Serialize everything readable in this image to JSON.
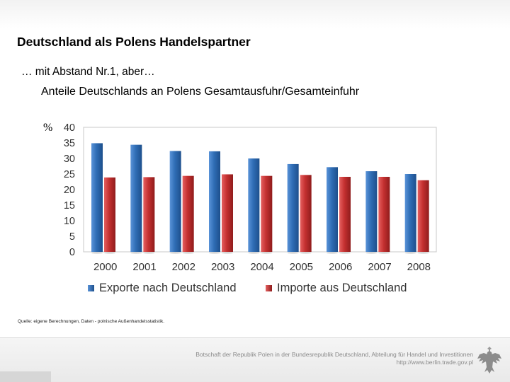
{
  "slide": {
    "title": "Deutschland als Polens Handelspartner",
    "subtitle": "… mit Abstand Nr.1, aber…",
    "source": "Quelle: eigene Berechnungen, Daten - polnische Außenhandelsstatistik.",
    "footer_line1": "Botschaft der Republik Polen in der Bundesrepublik Deutschland, Abteilung für Handel und Investitionen",
    "footer_line2": "http://www.berlin.trade.gov.pl"
  },
  "chart_data": {
    "type": "bar",
    "title": "Anteile Deutschlands an Polens Gesamtausfuhr/Gesamteinfuhr",
    "ylabel": "%",
    "xlabel": "",
    "categories": [
      "2000",
      "2001",
      "2002",
      "2003",
      "2004",
      "2005",
      "2006",
      "2007",
      "2008"
    ],
    "series": [
      {
        "name": "Exporte nach Deutschland",
        "color": "#2f6db5",
        "values": [
          34.9,
          34.4,
          32.4,
          32.3,
          30.0,
          28.2,
          27.2,
          25.9,
          25.0
        ]
      },
      {
        "name": "Importe aus Deutschland",
        "color": "#c43030",
        "values": [
          23.9,
          24.0,
          24.4,
          24.9,
          24.4,
          24.7,
          24.1,
          24.1,
          23.0
        ]
      }
    ],
    "ylim": [
      0,
      40
    ],
    "yticks": [
      0,
      5,
      10,
      15,
      20,
      25,
      30,
      35,
      40
    ],
    "legend": "bottom",
    "grid": false
  }
}
